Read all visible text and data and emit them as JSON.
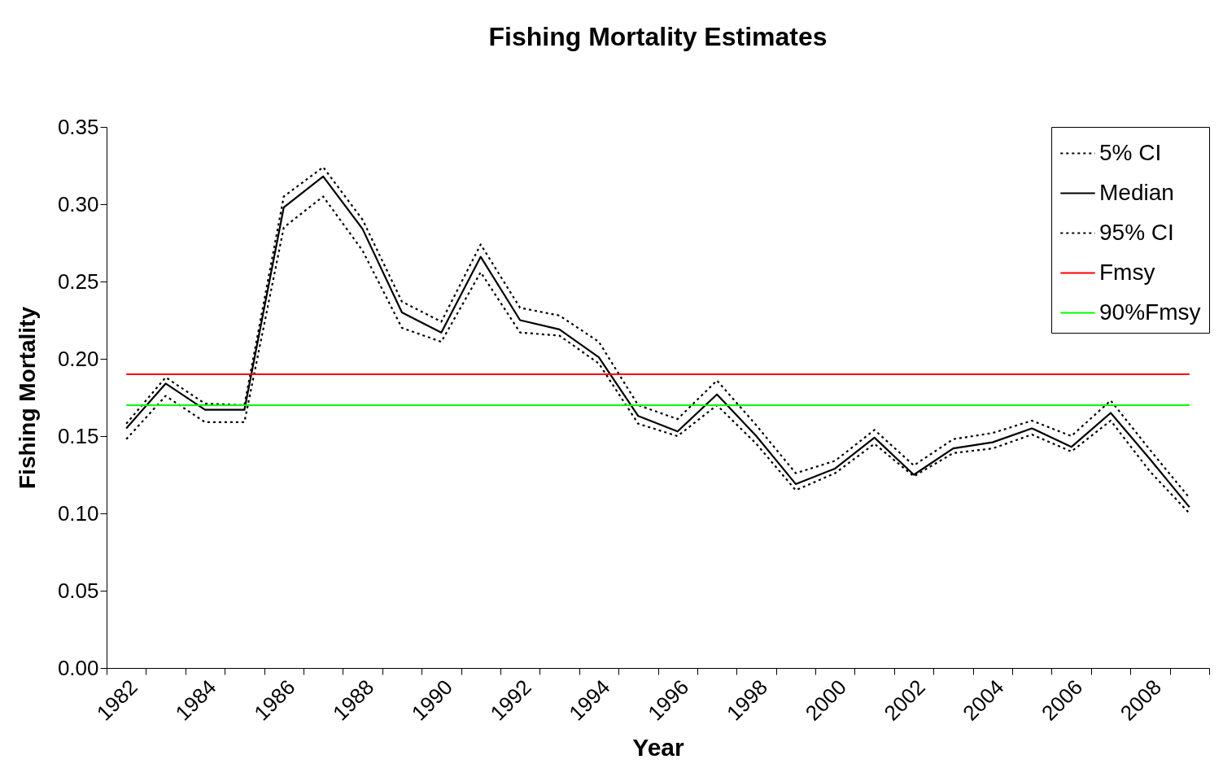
{
  "chart_data": {
    "type": "line",
    "title": "Fishing Mortality Estimates",
    "xlabel": "Year",
    "ylabel": "Fishing Mortality",
    "categories": [
      "1982",
      null,
      "1984",
      null,
      "1986",
      null,
      "1988",
      null,
      "1990",
      null,
      "1992",
      null,
      "1994",
      null,
      "1996",
      null,
      "1998",
      null,
      "2000",
      null,
      "2002",
      null,
      "2004",
      null,
      "2006",
      null,
      "2008",
      null
    ],
    "ylim": [
      0,
      0.35
    ],
    "yticks": [
      {
        "value": 0,
        "label": "0.00"
      },
      0.05,
      {
        "value": 0.1,
        "label": "0.10"
      },
      0.15,
      {
        "value": 0.2,
        "label": "0.20"
      },
      0.25,
      {
        "value": 0.3,
        "label": "0.30"
      },
      0.35
    ],
    "grid": false,
    "legend": "top right",
    "marker": "none",
    "series": [
      {
        "name": "5% CI",
        "color": "#000000",
        "line_style": "dotted",
        "values": [
          0.148,
          0.176,
          0.159,
          0.159,
          0.285,
          0.305,
          0.27,
          0.22,
          0.211,
          0.256,
          0.217,
          0.215,
          0.197,
          0.158,
          0.15,
          0.17,
          0.145,
          0.115,
          0.126,
          0.145,
          0.124,
          0.139,
          0.142,
          0.151,
          0.14,
          0.16,
          0.127,
          0.1
        ]
      },
      {
        "name": "Median",
        "color": "#000000",
        "line_style": "solid",
        "values": [
          0.155,
          0.184,
          0.167,
          0.167,
          0.298,
          0.318,
          0.284,
          0.23,
          0.217,
          0.266,
          0.225,
          0.219,
          0.201,
          0.163,
          0.153,
          0.177,
          0.15,
          0.119,
          0.129,
          0.149,
          0.125,
          0.142,
          0.146,
          0.155,
          0.143,
          0.165,
          0.135,
          0.104
        ]
      },
      {
        "name": "95% CI",
        "color": "#000000",
        "line_style": "dotted",
        "values": [
          0.158,
          0.188,
          0.171,
          0.17,
          0.305,
          0.324,
          0.29,
          0.237,
          0.224,
          0.274,
          0.233,
          0.228,
          0.211,
          0.17,
          0.161,
          0.186,
          0.157,
          0.126,
          0.134,
          0.154,
          0.131,
          0.148,
          0.152,
          0.16,
          0.15,
          0.173,
          0.141,
          0.11
        ]
      },
      {
        "name": "Fmsy",
        "color": "#ff0000",
        "line_style": "solid",
        "values": [
          0.19,
          0.19,
          0.19,
          0.19,
          0.19,
          0.19,
          0.19,
          0.19,
          0.19,
          0.19,
          0.19,
          0.19,
          0.19,
          0.19,
          0.19,
          0.19,
          0.19,
          0.19,
          0.19,
          0.19,
          0.19,
          0.19,
          0.19,
          0.19,
          0.19,
          0.19,
          0.19,
          0.19
        ]
      },
      {
        "name": "90%Fmsy",
        "color": "#00ff00",
        "line_style": "solid",
        "values": [
          0.17,
          0.17,
          0.17,
          0.17,
          0.17,
          0.17,
          0.17,
          0.17,
          0.17,
          0.17,
          0.17,
          0.17,
          0.17,
          0.17,
          0.17,
          0.17,
          0.17,
          0.17,
          0.17,
          0.17,
          0.17,
          0.17,
          0.17,
          0.17,
          0.17,
          0.17,
          0.17,
          0.17
        ]
      }
    ]
  }
}
